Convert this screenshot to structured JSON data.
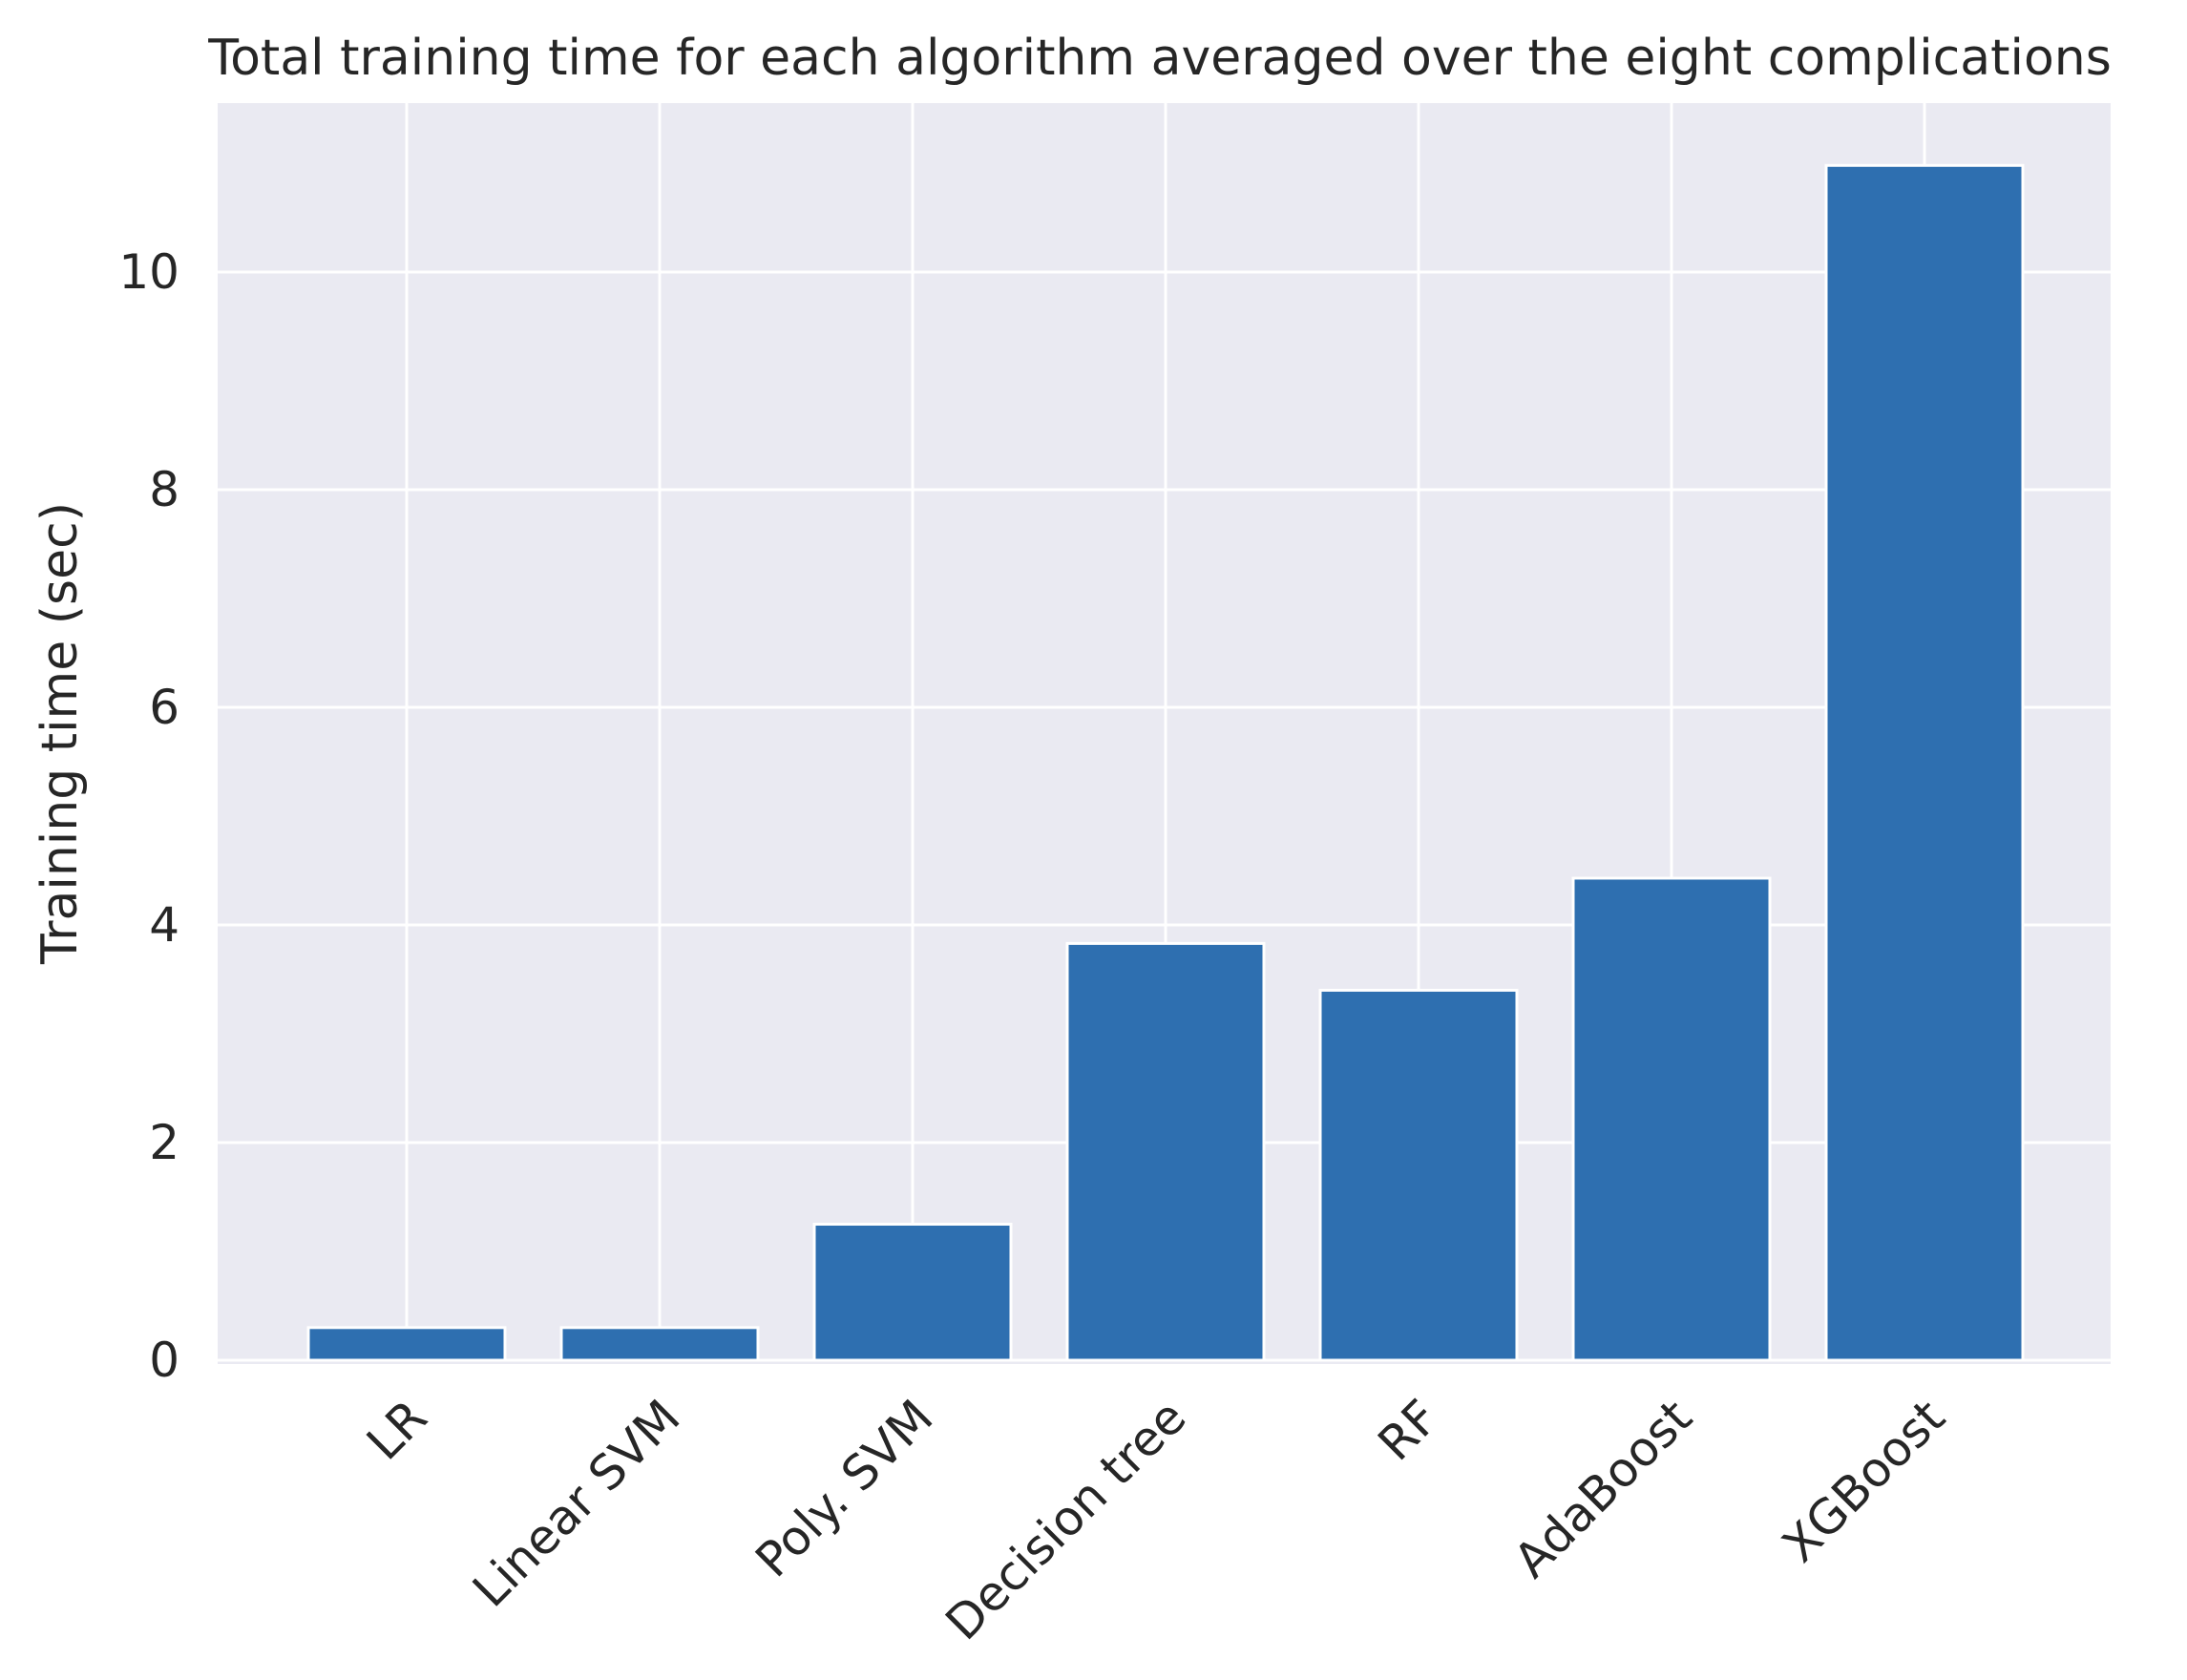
{
  "chart_data": {
    "type": "bar",
    "title": "Total training time for each algorithm averaged over the eight complications",
    "xlabel": "",
    "ylabel": "Training time (sec)",
    "categories": [
      "LR",
      "Linear SVM",
      "Poly. SVM",
      "Decision tree",
      "RF",
      "AdaBoost",
      "XGBoost"
    ],
    "values": [
      0.3,
      0.3,
      1.25,
      3.83,
      3.4,
      4.43,
      10.98
    ],
    "ylim": [
      0,
      11.5
    ],
    "yticks": [
      0,
      2,
      4,
      6,
      8,
      10
    ],
    "ytick_labels": [
      "0",
      "2",
      "4",
      "6",
      "8",
      "10"
    ],
    "grid": true,
    "legend": "none",
    "colors": {
      "bar": "#2e6fb0",
      "plot_background": "#eaeaf2",
      "grid": "#ffffff",
      "text": "#262626"
    }
  }
}
